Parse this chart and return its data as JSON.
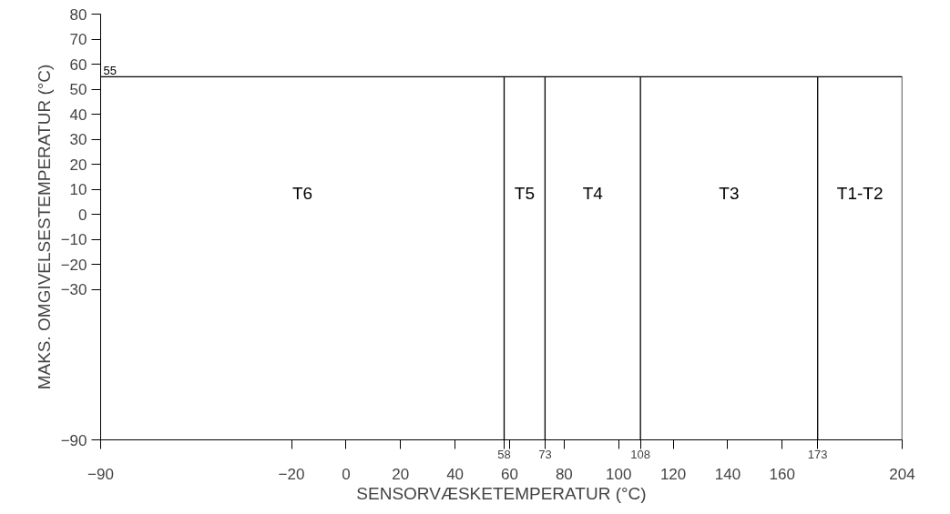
{
  "chart_data": {
    "type": "line",
    "xlabel": "SENSORVÆSKETEMPERATUR (°C)",
    "ylabel": "MAKS. OMGIVELSESTEMPERATUR (°C)",
    "xlim": [
      -90,
      204
    ],
    "ylim": [
      -90,
      80
    ],
    "xticks": [
      -90,
      -20,
      0,
      20,
      40,
      60,
      80,
      100,
      120,
      140,
      160,
      204
    ],
    "yticks": [
      -90,
      -30,
      -20,
      -10,
      0,
      10,
      20,
      30,
      40,
      50,
      60,
      70,
      80
    ],
    "series": [
      {
        "color": "#000000",
        "x": [
          -90,
          204
        ],
        "values": [
          55,
          55
        ],
        "value_labels": [
          "55",
          null
        ]
      }
    ],
    "ref_lines": [
      {
        "axis": "x",
        "value": 58,
        "label": "58"
      },
      {
        "axis": "x",
        "value": 73,
        "label": "73"
      },
      {
        "axis": "x",
        "value": 108,
        "label": "108"
      },
      {
        "axis": "x",
        "value": 173,
        "label": "173"
      }
    ],
    "annotations": [
      "T6",
      "T5",
      "T4",
      "T3",
      "T1-T2"
    ]
  }
}
